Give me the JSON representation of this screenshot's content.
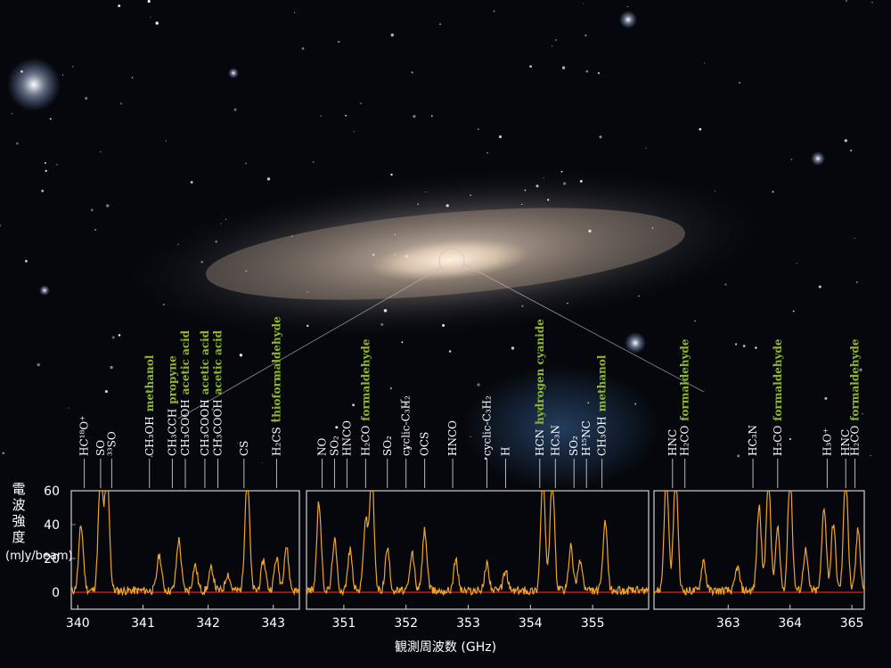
{
  "colors": {
    "background": "#05070c",
    "spectrum": "#f0a52a",
    "baseline": "#e0201c",
    "molecule_label": "#ffffff",
    "name_label": "#8fb82e",
    "frame": "#cfcfcf"
  },
  "chart_data": {
    "type": "line",
    "xlabel": "観測周波数 (GHz)",
    "ylabel": "電波強度 (mJy/beam)",
    "ylabel_lines": [
      "電",
      "波",
      "強",
      "度",
      "(mJy/beam)"
    ],
    "ylim": [
      -10,
      60
    ],
    "yticks": [
      0,
      20,
      40,
      60
    ],
    "baseline_y": 0,
    "grid": false,
    "panels": [
      {
        "xlim": [
          339.9,
          343.4
        ],
        "xticks": [
          340,
          341,
          342,
          343
        ],
        "peaks": [
          {
            "x": 340.05,
            "y": 38
          },
          {
            "x": 340.35,
            "y": 70
          },
          {
            "x": 340.45,
            "y": 70
          },
          {
            "x": 341.25,
            "y": 21
          },
          {
            "x": 341.55,
            "y": 30
          },
          {
            "x": 341.8,
            "y": 15
          },
          {
            "x": 342.05,
            "y": 13
          },
          {
            "x": 342.3,
            "y": 10
          },
          {
            "x": 342.6,
            "y": 70
          },
          {
            "x": 342.85,
            "y": 18
          },
          {
            "x": 343.05,
            "y": 19
          },
          {
            "x": 343.2,
            "y": 26
          }
        ],
        "lines": [
          {
            "x": 340.1,
            "mol": "HC¹⁸O⁺",
            "name": ""
          },
          {
            "x": 340.35,
            "mol": "SO",
            "name": ""
          },
          {
            "x": 340.52,
            "mol": "³³SO",
            "name": ""
          },
          {
            "x": 341.1,
            "mol": "CH₃OH",
            "name": "methanol"
          },
          {
            "x": 341.45,
            "mol": "CH₃CCH",
            "name": "propyne"
          },
          {
            "x": 341.65,
            "mol": "CH₃COOH",
            "name": "acetic acid"
          },
          {
            "x": 341.95,
            "mol": "CH₃COOH",
            "name": "acetic acid"
          },
          {
            "x": 342.15,
            "mol": "CH₃COOH",
            "name": "acetic acid"
          },
          {
            "x": 342.55,
            "mol": "CS",
            "name": ""
          },
          {
            "x": 343.05,
            "mol": "H₂CS",
            "name": "thioformaldehyde"
          }
        ]
      },
      {
        "xlim": [
          350.4,
          355.9
        ],
        "xticks": [
          351,
          352,
          353,
          354,
          355
        ],
        "peaks": [
          {
            "x": 350.6,
            "y": 52
          },
          {
            "x": 350.85,
            "y": 30
          },
          {
            "x": 351.1,
            "y": 24
          },
          {
            "x": 351.35,
            "y": 42
          },
          {
            "x": 351.45,
            "y": 70
          },
          {
            "x": 351.7,
            "y": 25
          },
          {
            "x": 352.1,
            "y": 22
          },
          {
            "x": 352.3,
            "y": 36
          },
          {
            "x": 352.8,
            "y": 18
          },
          {
            "x": 353.3,
            "y": 16
          },
          {
            "x": 353.6,
            "y": 12
          },
          {
            "x": 354.2,
            "y": 70
          },
          {
            "x": 354.35,
            "y": 70
          },
          {
            "x": 354.65,
            "y": 26
          },
          {
            "x": 354.8,
            "y": 18
          },
          {
            "x": 355.2,
            "y": 40
          }
        ],
        "lines": [
          {
            "x": 350.65,
            "mol": "NO",
            "name": ""
          },
          {
            "x": 350.85,
            "mol": "SO₂",
            "name": ""
          },
          {
            "x": 351.05,
            "mol": "HNCO",
            "name": ""
          },
          {
            "x": 351.35,
            "mol": "H₂CO",
            "name": "formaldehyde"
          },
          {
            "x": 351.7,
            "mol": "SO₂",
            "name": ""
          },
          {
            "x": 352.0,
            "mol": "cyclic-C₃H₂",
            "name": ""
          },
          {
            "x": 352.3,
            "mol": "OCS",
            "name": ""
          },
          {
            "x": 352.75,
            "mol": "HNCO",
            "name": ""
          },
          {
            "x": 353.3,
            "mol": "cyclic-C₃H₂",
            "name": ""
          },
          {
            "x": 353.6,
            "mol": "H",
            "name": ""
          },
          {
            "x": 354.15,
            "mol": "HCN",
            "name": "hydrogen cyanide"
          },
          {
            "x": 354.4,
            "mol": "HC₃N",
            "name": ""
          },
          {
            "x": 354.7,
            "mol": "SO₂",
            "name": ""
          },
          {
            "x": 354.9,
            "mol": "H¹⁵NC",
            "name": ""
          },
          {
            "x": 355.15,
            "mol": "CH₃OH",
            "name": "methanol"
          }
        ]
      },
      {
        "xlim": [
          361.8,
          365.2
        ],
        "xticks": [
          363,
          364,
          365
        ],
        "peaks": [
          {
            "x": 362.0,
            "y": 70
          },
          {
            "x": 362.15,
            "y": 70
          },
          {
            "x": 362.6,
            "y": 18
          },
          {
            "x": 363.15,
            "y": 14
          },
          {
            "x": 363.5,
            "y": 50
          },
          {
            "x": 363.65,
            "y": 70
          },
          {
            "x": 363.8,
            "y": 36
          },
          {
            "x": 364.0,
            "y": 70
          },
          {
            "x": 364.25,
            "y": 24
          },
          {
            "x": 364.55,
            "y": 50
          },
          {
            "x": 364.7,
            "y": 40
          },
          {
            "x": 364.9,
            "y": 70
          },
          {
            "x": 365.1,
            "y": 36
          }
        ],
        "lines": [
          {
            "x": 362.1,
            "mol": "HNC",
            "name": ""
          },
          {
            "x": 362.3,
            "mol": "H₂CO",
            "name": "formaldehyde"
          },
          {
            "x": 363.4,
            "mol": "HC₃N",
            "name": ""
          },
          {
            "x": 363.8,
            "mol": "H₂CO",
            "name": "formaldehyde"
          },
          {
            "x": 364.6,
            "mol": "H₃O⁺",
            "name": ""
          },
          {
            "x": 364.9,
            "mol": "HNC",
            "name": ""
          },
          {
            "x": 365.05,
            "mol": "H₂CO",
            "name": "formaldehyde"
          }
        ]
      }
    ]
  }
}
